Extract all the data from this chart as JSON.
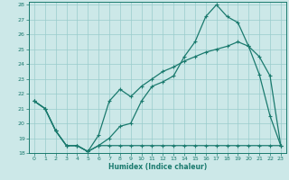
{
  "xlabel": "Humidex (Indice chaleur)",
  "bg_color": "#cce8e8",
  "grid_color": "#99cccc",
  "line_color": "#1a7a6e",
  "xlim": [
    -0.5,
    23.5
  ],
  "ylim": [
    18,
    28.2
  ],
  "yticks": [
    18,
    19,
    20,
    21,
    22,
    23,
    24,
    25,
    26,
    27,
    28
  ],
  "xticks": [
    0,
    1,
    2,
    3,
    4,
    5,
    6,
    7,
    8,
    9,
    10,
    11,
    12,
    13,
    14,
    15,
    16,
    17,
    18,
    19,
    20,
    21,
    22,
    23
  ],
  "line1_x": [
    0,
    1,
    2,
    3,
    4,
    5,
    6,
    7,
    8,
    9,
    10,
    11,
    12,
    13,
    14,
    15,
    16,
    17,
    18,
    19,
    20,
    21,
    22,
    23
  ],
  "line1_y": [
    21.5,
    21.0,
    19.5,
    18.5,
    18.5,
    18.1,
    18.5,
    19.0,
    19.8,
    20.0,
    21.5,
    22.5,
    22.8,
    23.2,
    24.5,
    25.5,
    27.2,
    28.0,
    27.2,
    26.8,
    25.2,
    23.3,
    20.5,
    18.5
  ],
  "line2_x": [
    0,
    1,
    2,
    3,
    4,
    5,
    6,
    7,
    8,
    9,
    10,
    11,
    12,
    13,
    14,
    15,
    16,
    17,
    18,
    19,
    20,
    21,
    22,
    23
  ],
  "line2_y": [
    21.5,
    21.0,
    19.5,
    18.5,
    18.5,
    18.1,
    19.2,
    21.5,
    22.3,
    21.8,
    22.5,
    23.0,
    23.5,
    23.8,
    24.2,
    24.5,
    24.8,
    25.0,
    25.2,
    25.5,
    25.2,
    24.5,
    23.2,
    18.5
  ],
  "line3_x": [
    0,
    1,
    2,
    3,
    4,
    5,
    6,
    7,
    8,
    9,
    10,
    11,
    12,
    13,
    14,
    15,
    16,
    17,
    18,
    19,
    20,
    21,
    22,
    23
  ],
  "line3_y": [
    21.5,
    21.0,
    19.5,
    18.5,
    18.5,
    18.1,
    18.5,
    18.5,
    18.5,
    18.5,
    18.5,
    18.5,
    18.5,
    18.5,
    18.5,
    18.5,
    18.5,
    18.5,
    18.5,
    18.5,
    18.5,
    18.5,
    18.5,
    18.5
  ]
}
